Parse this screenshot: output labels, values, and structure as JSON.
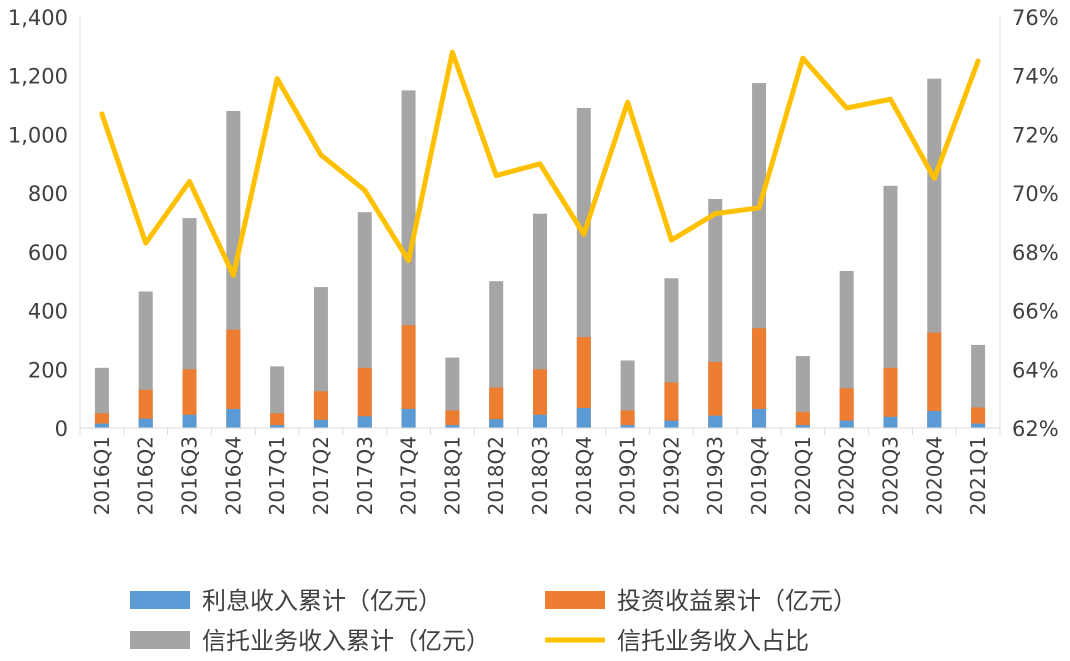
{
  "chart_data": {
    "type": "bar",
    "categories": [
      "2016Q1",
      "2016Q2",
      "2016Q3",
      "2016Q4",
      "2017Q1",
      "2017Q2",
      "2017Q3",
      "2017Q4",
      "2018Q1",
      "2018Q2",
      "2018Q3",
      "2018Q4",
      "2019Q1",
      "2019Q2",
      "2019Q3",
      "2019Q4",
      "2020Q1",
      "2020Q2",
      "2020Q3",
      "2020Q4",
      "2021Q1"
    ],
    "series": [
      {
        "name": "利息收入累计（亿元）",
        "type": "bar",
        "axis": "left",
        "color": "#5B9BD5",
        "values": [
          15,
          32,
          45,
          65,
          10,
          28,
          40,
          65,
          10,
          30,
          45,
          68,
          10,
          25,
          42,
          65,
          10,
          25,
          38,
          58,
          15
        ]
      },
      {
        "name": "投资收益累计（亿元）",
        "type": "bar",
        "axis": "left",
        "color": "#ED7D31",
        "values": [
          50,
          130,
          200,
          335,
          50,
          125,
          205,
          350,
          60,
          138,
          200,
          310,
          60,
          155,
          225,
          340,
          55,
          135,
          205,
          325,
          70
        ]
      },
      {
        "name": "信托业务收入累计（亿元）",
        "type": "bar",
        "axis": "left",
        "color": "#A5A5A5",
        "values": [
          205,
          465,
          715,
          1080,
          210,
          480,
          735,
          1150,
          240,
          500,
          730,
          1090,
          230,
          510,
          780,
          1175,
          245,
          535,
          825,
          1190,
          283
        ]
      },
      {
        "name": "信托业务收入占比",
        "type": "line",
        "axis": "right",
        "color": "#FFC000",
        "values": [
          72.7,
          68.3,
          70.4,
          67.2,
          73.9,
          71.3,
          70.1,
          67.7,
          74.8,
          70.6,
          71.0,
          68.6,
          73.1,
          68.4,
          69.3,
          69.5,
          74.6,
          72.9,
          73.2,
          70.5,
          74.5
        ]
      }
    ],
    "y_left": {
      "ylim": [
        0,
        1400
      ],
      "ticks": [
        "0",
        "200",
        "400",
        "600",
        "800",
        "1,000",
        "1,200",
        "1,400"
      ]
    },
    "y_right": {
      "ylim": [
        62,
        76
      ],
      "ticks": [
        "62%",
        "64%",
        "66%",
        "68%",
        "70%",
        "72%",
        "74%",
        "76%"
      ]
    },
    "grid": false,
    "legend": "bottom"
  }
}
